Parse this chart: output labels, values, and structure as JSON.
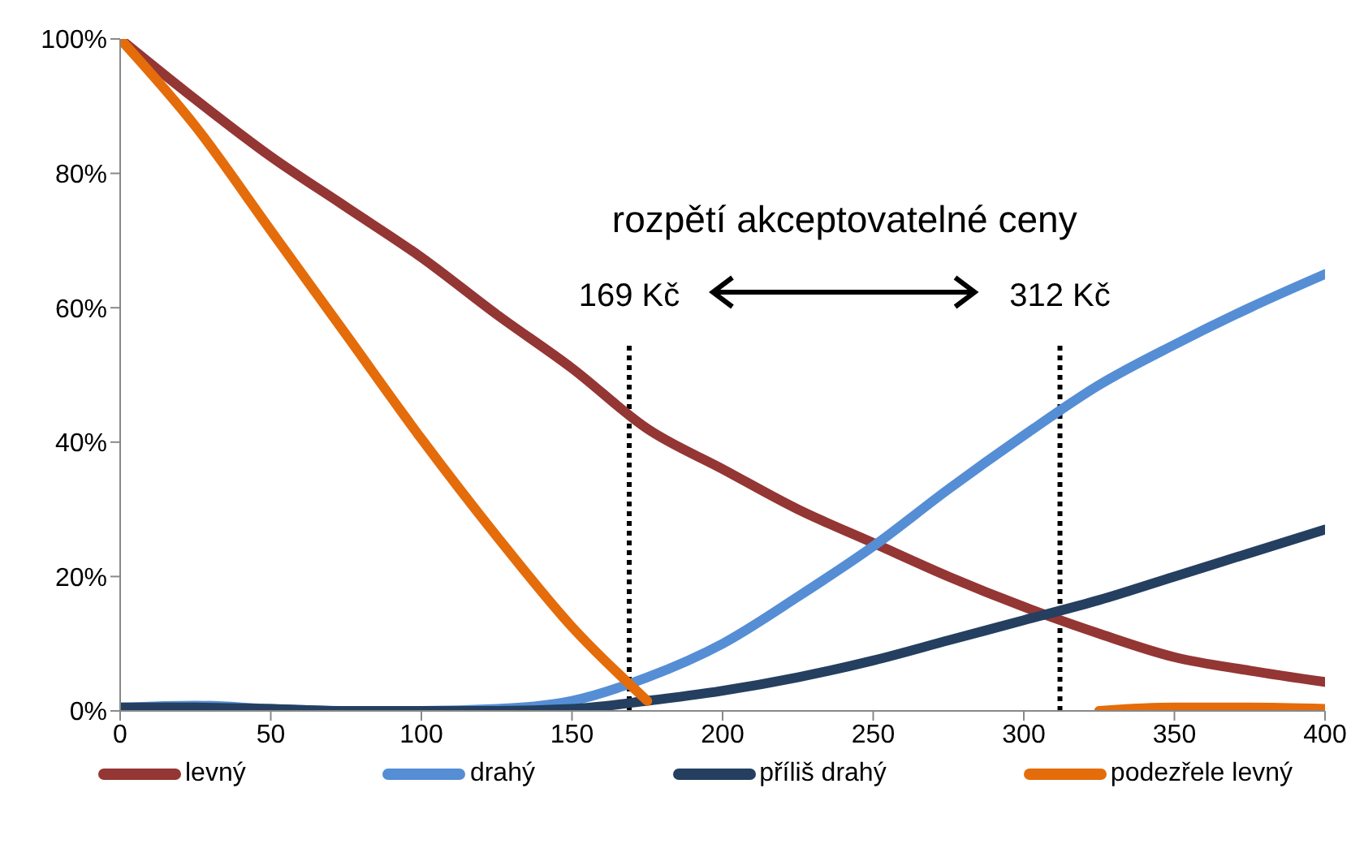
{
  "chart_data": {
    "type": "line",
    "x": [
      0,
      25,
      50,
      75,
      100,
      125,
      150,
      175,
      200,
      225,
      250,
      275,
      300,
      325,
      350,
      375,
      400
    ],
    "series": [
      {
        "name": "levný",
        "color": "#943634",
        "values": [
          100,
          91,
          82.5,
          75,
          67.5,
          59,
          51,
          42,
          36,
          30,
          25,
          20,
          15.5,
          11.5,
          8,
          6,
          4.3
        ]
      },
      {
        "name": "drahý",
        "color": "#558ed5",
        "values": [
          0.5,
          0.8,
          0.3,
          0,
          0,
          0.3,
          1.5,
          5,
          10,
          17,
          24.5,
          33,
          41,
          48.5,
          54.5,
          60,
          65
        ]
      },
      {
        "name": "příliš drahý",
        "color": "#243f60",
        "values": [
          0.5,
          0.5,
          0.3,
          0,
          0,
          0,
          0.3,
          1.5,
          3,
          5,
          7.5,
          10.5,
          13.5,
          16.5,
          20,
          23.5,
          27
        ]
      },
      {
        "name": "podezřele levný",
        "color": "#e46c0a",
        "values": [
          100,
          87,
          71.5,
          56,
          40.5,
          26,
          12.5,
          1.5,
          null,
          null,
          null,
          null,
          null,
          0,
          0.5,
          0.5,
          0.3
        ]
      }
    ],
    "xlim": [
      0,
      400
    ],
    "xticks": [
      0,
      50,
      100,
      150,
      200,
      250,
      300,
      350,
      400
    ],
    "ylim": [
      0,
      100
    ],
    "yticks": [
      {
        "value": 0,
        "label": "0%"
      },
      {
        "value": 20,
        "label": "20%"
      },
      {
        "value": 40,
        "label": "40%"
      },
      {
        "value": 60,
        "label": "60%"
      },
      {
        "value": 80,
        "label": "80%"
      },
      {
        "value": 100,
        "label": "100%"
      }
    ],
    "ref_lines": [
      {
        "axis": "x",
        "value": 169,
        "label": "169 Kč",
        "color": "#000000",
        "line_style": "dotted"
      },
      {
        "axis": "x",
        "value": 312,
        "label": "312 Kč",
        "color": "#000000",
        "line_style": "dotted"
      }
    ],
    "annotations": [
      "rozpětí akceptovatelné ceny"
    ],
    "grid": false,
    "legend": "bottom",
    "marker": "none",
    "line_style": "solid"
  }
}
